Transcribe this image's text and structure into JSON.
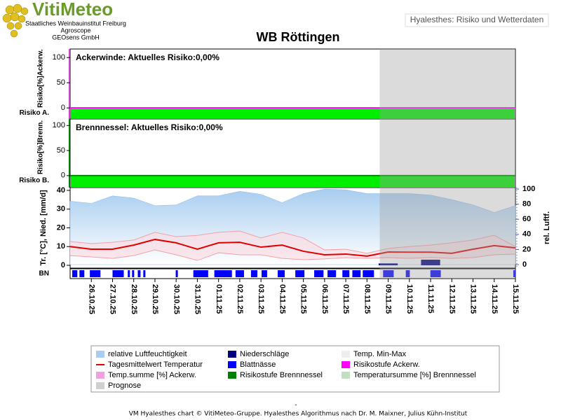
{
  "header": {
    "logo": "VitiMeteo",
    "lines": [
      "Staatliches Weinbauinstitut Freiburg",
      "Agroscope",
      "GEOsens GmbH"
    ],
    "badge": "Hyalesthes: Risiko und Wetterdaten",
    "title": "WB Röttingen"
  },
  "chart_data": [
    {
      "type": "line",
      "title": "Ackerwinde: Aktuelles Risiko:0,00%",
      "ylabel": "Risiko[%]Ackerw.",
      "row_label": "Risiko A.",
      "xlim": [
        -1,
        20
      ],
      "ylim": [
        -22,
        117
      ],
      "yticks": [
        0,
        50,
        100
      ],
      "axis_color": "#cc44cc",
      "stage_color": "#00ee00",
      "x": [
        -1,
        0,
        1,
        2,
        3,
        4,
        5,
        6,
        7,
        8,
        9,
        10,
        11,
        12,
        13,
        14,
        15,
        16,
        17,
        18,
        19,
        20
      ],
      "series": [
        {
          "name": "Risikostufe Ackerw.",
          "color": "#ff00ff",
          "values": [
            0,
            0,
            0,
            0,
            0,
            0,
            0,
            0,
            0,
            0,
            0,
            0,
            0,
            0,
            0,
            0,
            0,
            0,
            0,
            0,
            0,
            0
          ]
        }
      ]
    },
    {
      "type": "line",
      "title": "Brennnessel: Aktuelles Risiko:0,00%",
      "ylabel": "Risiko[%]Brenn.",
      "row_label": "Risiko B.",
      "xlim": [
        -1,
        20
      ],
      "ylim": [
        -24,
        113
      ],
      "yticks": [
        0,
        50,
        100
      ],
      "axis_color": "#008000",
      "stage_color": "#00ee00",
      "x": [
        -1,
        0,
        1,
        2,
        3,
        4,
        5,
        6,
        7,
        8,
        9,
        10,
        11,
        12,
        13,
        14,
        15,
        16,
        17,
        18,
        19,
        20
      ],
      "series": [
        {
          "name": "Risikostufe Brennnessel",
          "color": "#008000",
          "values": [
            0,
            0,
            0,
            0,
            0,
            0,
            0,
            0,
            0,
            0,
            0,
            0,
            0,
            0,
            0,
            0,
            0,
            0,
            0,
            0,
            0,
            0
          ]
        }
      ]
    },
    {
      "type": "weather",
      "ylabel": "Tr. [°C], Nied. [mm/d]",
      "y2label": "rel. Luftf.",
      "strip_label": "BN",
      "xlim": [
        -1,
        20
      ],
      "ylim": [
        -1.5,
        41.5
      ],
      "yticks": [
        0,
        10,
        20,
        30,
        40
      ],
      "y2lim": [
        -4.6,
        101.9
      ],
      "y2ticks": [
        0,
        20,
        40,
        60,
        80,
        100
      ],
      "forecast_start": 13.6,
      "xticks": [
        {
          "value": 0,
          "label": "26.10.25"
        },
        {
          "value": 1,
          "label": "27.10.25"
        },
        {
          "value": 2,
          "label": "28.10.25"
        },
        {
          "value": 3,
          "label": "29.10.25"
        },
        {
          "value": 4,
          "label": "30.10.25"
        },
        {
          "value": 5,
          "label": "31.10.25"
        },
        {
          "value": 6,
          "label": "01.11.25"
        },
        {
          "value": 7,
          "label": "02.11.25"
        },
        {
          "value": 8,
          "label": "03.11.25"
        },
        {
          "value": 9,
          "label": "04.11.25"
        },
        {
          "value": 10,
          "label": "05.11.25"
        },
        {
          "value": 11,
          "label": "06.11.25"
        },
        {
          "value": 12,
          "label": "07.11.25"
        },
        {
          "value": 13,
          "label": "08.11.25"
        },
        {
          "value": 14,
          "label": "09.11.25"
        },
        {
          "value": 15,
          "label": "10.11.25"
        },
        {
          "value": 16,
          "label": "11.11.25"
        },
        {
          "value": 17,
          "label": "12.11.25"
        },
        {
          "value": 18,
          "label": "13.11.25"
        },
        {
          "value": 19,
          "label": "14.11.25"
        },
        {
          "value": 20,
          "label": "15.11.25"
        }
      ],
      "x": [
        -1,
        0,
        1,
        2,
        3,
        4,
        5,
        6,
        7,
        8,
        9,
        10,
        11,
        12,
        13,
        14,
        15,
        16,
        17,
        18,
        19,
        20
      ],
      "humidity": {
        "color": "#a8cdf0",
        "axis": "y2",
        "values": [
          84,
          81,
          91,
          88,
          78,
          79,
          91,
          91,
          97,
          93,
          82,
          94,
          100,
          99,
          94,
          94,
          94,
          92,
          86,
          79,
          69,
          78
        ]
      },
      "temp_mean": {
        "color": "#e00000",
        "values": [
          10,
          8.6,
          8.6,
          10.8,
          13.8,
          12,
          8.6,
          12,
          12.3,
          9.7,
          10.8,
          7.5,
          5.6,
          6,
          4.9,
          7.1,
          7,
          7,
          6.4,
          8.6,
          10.5,
          9.3
        ]
      },
      "temp_max": {
        "color": "#f4a0a8",
        "values": [
          12.7,
          11.6,
          12.3,
          13.5,
          17.6,
          15.3,
          16,
          17.6,
          18.3,
          14.6,
          17.6,
          14.6,
          8.2,
          8.6,
          6.4,
          9,
          10,
          10.8,
          12,
          13.5,
          16,
          10
        ]
      },
      "temp_min": {
        "color": "#f4a0a8",
        "values": [
          5.2,
          4.5,
          3.7,
          5.2,
          8.2,
          5.6,
          2.6,
          6.7,
          5.6,
          5.6,
          3.7,
          3,
          3.4,
          4.1,
          3.7,
          4.1,
          3.7,
          4.1,
          3.7,
          4.1,
          5.6,
          6
        ]
      },
      "precipitation": {
        "color": "#000080",
        "x": [
          14,
          16
        ],
        "values": [
          1,
          3
        ]
      },
      "leaf_wetness": {
        "color": "#0000ff",
        "intervals": [
          [
            -0.9,
            -0.66
          ],
          [
            -0.56,
            -0.33
          ],
          [
            -0.07,
            0.43
          ],
          [
            1,
            1.53
          ],
          [
            1.72,
            1.82
          ],
          [
            1.92,
            2.02
          ],
          [
            2.19,
            2.32
          ],
          [
            2.45,
            2.55
          ],
          [
            3.98,
            4.08
          ],
          [
            4.81,
            5.51
          ],
          [
            5.8,
            6.63
          ],
          [
            6.8,
            7.2
          ],
          [
            7.53,
            7.83
          ],
          [
            8.03,
            8.29
          ],
          [
            8.79,
            9.12
          ],
          [
            9.62,
            10.05
          ],
          [
            10.51,
            10.95
          ],
          [
            11.14,
            11.54
          ],
          [
            11.84,
            12.17
          ],
          [
            12.31,
            12.7
          ],
          [
            12.8,
            13.33
          ],
          [
            13.76,
            14.26
          ],
          [
            14.83,
            15.02
          ],
          [
            15.99,
            16.48
          ],
          [
            19.9,
            20
          ]
        ]
      }
    }
  ],
  "legend": [
    {
      "name": "relative Luftfeuchtigkeit",
      "color": "#a8cdf0",
      "style": "box"
    },
    {
      "name": "Niederschläge",
      "color": "#000080",
      "style": "box"
    },
    {
      "name": "Temp. Min-Max",
      "color": "#eeeeee",
      "style": "box"
    },
    {
      "name": "Tagesmittelwert Temperatur",
      "color": "#e00000",
      "style": "line"
    },
    {
      "name": "Blattnässe",
      "color": "#0000ff",
      "style": "box"
    },
    {
      "name": "Risikostufe Ackerw.",
      "color": "#ff00ff",
      "style": "box"
    },
    {
      "name": "Temp.summe [%] Ackerw.",
      "color": "#f0a0e0",
      "style": "box"
    },
    {
      "name": "Risikostufe Brennnessel",
      "color": "#008000",
      "style": "box"
    },
    {
      "name": "Temperatursumme [%] Brennnessel",
      "color": "#c0e0c0",
      "style": "box"
    },
    {
      "name": "Prognose",
      "color": "#d0d0d0",
      "style": "box"
    }
  ],
  "footer": {
    "dash": "-",
    "text": "VM Hyalesthes chart © VitiMeteo-Gruppe. Hyalesthes Algorithmus nach Dr. M. Maixner, Julius Kühn-Institut"
  }
}
